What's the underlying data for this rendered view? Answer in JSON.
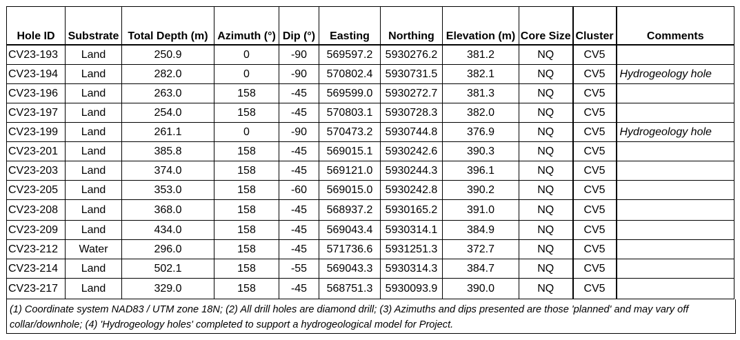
{
  "table": {
    "headers": [
      "Hole ID",
      "Substrate",
      "Total Depth (m)",
      "Azimuth (°)",
      "Dip (°)",
      "Easting",
      "Northing",
      "Elevation (m)",
      "Core Size",
      "Cluster",
      "Comments"
    ],
    "rows": [
      [
        "CV23-193",
        "Land",
        "250.9",
        "0",
        "-90",
        "569597.2",
        "5930276.2",
        "381.2",
        "NQ",
        "CV5",
        ""
      ],
      [
        "CV23-194",
        "Land",
        "282.0",
        "0",
        "-90",
        "570802.4",
        "5930731.5",
        "382.1",
        "NQ",
        "CV5",
        "Hydrogeology hole"
      ],
      [
        "CV23-196",
        "Land",
        "263.0",
        "158",
        "-45",
        "569599.0",
        "5930272.7",
        "381.3",
        "NQ",
        "CV5",
        ""
      ],
      [
        "CV23-197",
        "Land",
        "254.0",
        "158",
        "-45",
        "570803.1",
        "5930728.3",
        "382.0",
        "NQ",
        "CV5",
        ""
      ],
      [
        "CV23-199",
        "Land",
        "261.1",
        "0",
        "-90",
        "570473.2",
        "5930744.8",
        "376.9",
        "NQ",
        "CV5",
        "Hydrogeology hole"
      ],
      [
        "CV23-201",
        "Land",
        "385.8",
        "158",
        "-45",
        "569015.1",
        "5930242.6",
        "390.3",
        "NQ",
        "CV5",
        ""
      ],
      [
        "CV23-203",
        "Land",
        "374.0",
        "158",
        "-45",
        "569121.0",
        "5930244.3",
        "396.1",
        "NQ",
        "CV5",
        ""
      ],
      [
        "CV23-205",
        "Land",
        "353.0",
        "158",
        "-60",
        "569015.0",
        "5930242.8",
        "390.2",
        "NQ",
        "CV5",
        ""
      ],
      [
        "CV23-208",
        "Land",
        "368.0",
        "158",
        "-45",
        "568937.2",
        "5930165.2",
        "391.0",
        "NQ",
        "CV5",
        ""
      ],
      [
        "CV23-209",
        "Land",
        "434.0",
        "158",
        "-45",
        "569043.4",
        "5930314.1",
        "384.9",
        "NQ",
        "CV5",
        ""
      ],
      [
        "CV23-212",
        "Water",
        "296.0",
        "158",
        "-45",
        "571736.6",
        "5931251.3",
        "372.7",
        "NQ",
        "CV5",
        ""
      ],
      [
        "CV23-214",
        "Land",
        "502.1",
        "158",
        "-55",
        "569043.3",
        "5930314.3",
        "384.7",
        "NQ",
        "CV5",
        ""
      ],
      [
        "CV23-217",
        "Land",
        "329.0",
        "158",
        "-45",
        "568751.3",
        "5930093.9",
        "390.0",
        "NQ",
        "CV5",
        ""
      ]
    ]
  },
  "footnote": "(1) Coordinate system NAD83 / UTM zone 18N; (2) All drill holes are diamond drill; (3) Azimuths and dips presented are those 'planned' and may vary off collar/downhole; (4) 'Hydrogeology holes' completed to support a hydrogeological model for Project."
}
